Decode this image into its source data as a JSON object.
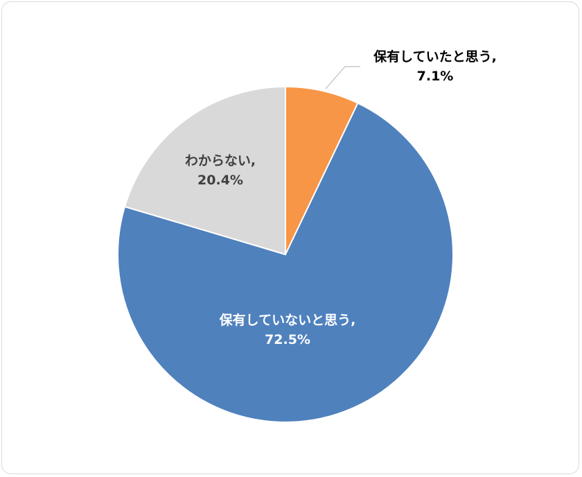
{
  "chart_data": {
    "type": "pie",
    "start_angle_deg": 0,
    "direction": "clockwise",
    "slices": [
      {
        "label": "保有していたと思う,",
        "value": 7.1,
        "value_label": "7.1%",
        "color": "#f79646",
        "label_color": "#000000",
        "label_position": "outside-with-leader"
      },
      {
        "label": "保有していないと思う,",
        "value": 72.5,
        "value_label": "72.5%",
        "color": "#4f81bd",
        "label_color": "#ffffff",
        "label_position": "inside"
      },
      {
        "label": "わからない,",
        "value": 20.4,
        "value_label": "20.4%",
        "color": "#d9d9d9",
        "label_color": "#404040",
        "label_position": "inside"
      }
    ],
    "legend": "none"
  }
}
